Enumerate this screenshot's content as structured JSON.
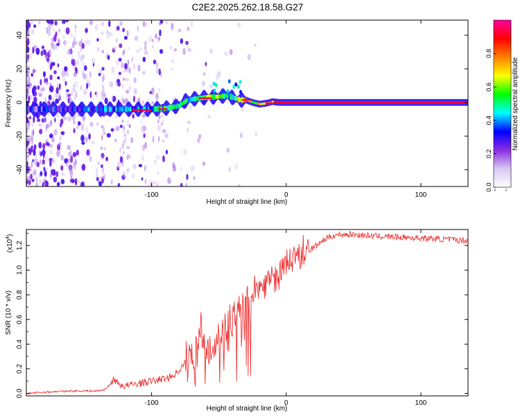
{
  "title": "C2E2.2025.262.18.58.G27",
  "chart_data": [
    {
      "type": "heatmap",
      "xlabel": "Height of straight line (km)",
      "ylabel": "Frequency (Hz)",
      "xlim": [
        -193,
        135
      ],
      "ylim": [
        -50,
        49
      ],
      "xticks": [
        -100,
        0,
        100
      ],
      "yticks": [
        -40,
        -20,
        0,
        20,
        40
      ],
      "colorbar": {
        "label": "Normalized spectral amplitude",
        "range": [
          0,
          1
        ],
        "ticks": [
          0.0,
          0.2,
          0.4,
          0.6,
          0.8
        ],
        "tick_labels": [
          "0.0",
          "0.2",
          "0.4",
          "0.6",
          "0.8"
        ],
        "colors": [
          "#ffffff",
          "#d8c8f2",
          "#8a2be2",
          "#0000ff",
          "#00ffff",
          "#00ff00",
          "#ffff00",
          "#ff8000",
          "#ff0000",
          "#ff00a0"
        ]
      },
      "ridge": {
        "x": [
          -193,
          -160,
          -140,
          -120,
          -100,
          -90,
          -80,
          -75,
          -70,
          -60,
          -50,
          -45,
          -40,
          -35,
          -30,
          -25,
          -20,
          -15,
          -10,
          -5,
          0,
          10,
          50,
          100,
          135
        ],
        "freq": [
          -4,
          -4,
          -4,
          -4,
          -4,
          -3.5,
          -2,
          1,
          2,
          3,
          3.5,
          4,
          3,
          1.5,
          1.5,
          0,
          -1,
          -0.5,
          0.5,
          0,
          0,
          0,
          0,
          0,
          0
        ],
        "amplitude": [
          0.25,
          0.3,
          0.35,
          0.38,
          0.4,
          0.5,
          0.55,
          0.45,
          0.5,
          0.55,
          0.55,
          0.5,
          0.45,
          0.65,
          0.75,
          0.6,
          0.7,
          0.75,
          0.8,
          0.9,
          0.95,
          0.95,
          0.95,
          0.95,
          0.95
        ]
      }
    },
    {
      "type": "line",
      "xlabel": "Height of straight line (km)",
      "ylabel": "SNR (10 * v/v)",
      "y_multiplier": "(x10^4)",
      "multiplier_base": "(x10",
      "multiplier_exp": "4",
      "xlim": [
        -193,
        135
      ],
      "ylim": [
        -0.02,
        1.33
      ],
      "xticks": [
        -100,
        0,
        100
      ],
      "yticks": [
        0.0,
        0.2,
        0.4,
        0.6,
        0.8,
        1.0,
        1.2
      ],
      "ytick_labels": [
        "0.0",
        "0.2",
        "0.4",
        "0.6",
        "0.8",
        "1.0",
        "1.2"
      ],
      "color": "#ee3333",
      "series": [
        {
          "name": "SNR",
          "x": [
            -193,
            -180,
            -160,
            -140,
            -135,
            -130,
            -128,
            -125,
            -120,
            -110,
            -100,
            -90,
            -85,
            -80,
            -75,
            -70,
            -66,
            -64,
            -62,
            -60,
            -55,
            -50,
            -45,
            -42,
            -40,
            -35,
            -30,
            -25,
            -20,
            -15,
            -10,
            -5,
            0,
            5,
            10,
            15,
            20,
            25,
            30,
            35,
            40,
            50,
            60,
            80,
            100,
            120,
            135
          ],
          "values": [
            0.0,
            0.01,
            0.02,
            0.02,
            0.03,
            0.08,
            0.12,
            0.08,
            0.06,
            0.08,
            0.1,
            0.12,
            0.14,
            0.18,
            0.25,
            0.3,
            0.45,
            0.65,
            0.35,
            0.3,
            0.4,
            0.5,
            0.55,
            0.6,
            0.65,
            0.7,
            0.75,
            0.8,
            0.85,
            0.9,
            0.93,
            0.95,
            1.05,
            1.1,
            1.12,
            1.15,
            1.18,
            1.22,
            1.26,
            1.28,
            1.29,
            1.29,
            1.28,
            1.27,
            1.26,
            1.25,
            1.24
          ]
        }
      ]
    }
  ]
}
